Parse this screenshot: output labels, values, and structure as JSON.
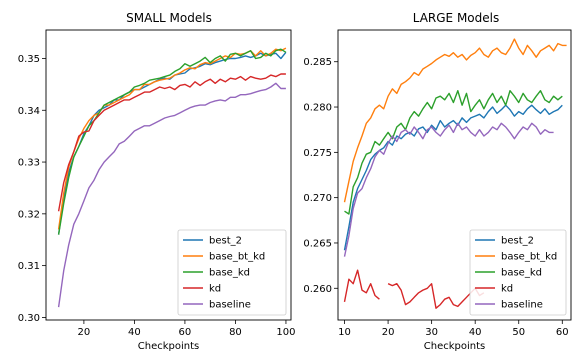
{
  "chart_data": [
    {
      "type": "line",
      "title": "SMALL Models",
      "xlabel": "Checkpoints",
      "ylabel": "",
      "xlim": [
        5,
        102
      ],
      "ylim": [
        0.2995,
        0.3555
      ],
      "xticks": [
        "20",
        "40",
        "60",
        "80",
        "100"
      ],
      "xtick_values": [
        20,
        40,
        60,
        80,
        100
      ],
      "yticks": [
        "0.30",
        "0.31",
        "0.32",
        "0.33",
        "0.34",
        "0.35"
      ],
      "ytick_values": [
        0.3,
        0.31,
        0.32,
        0.33,
        0.34,
        0.35
      ],
      "legend": "lower-right",
      "grid": false,
      "series": [
        {
          "name": "best_2",
          "color": "#1f77b4",
          "x": [
            10,
            12,
            14,
            16,
            18,
            20,
            22,
            24,
            26,
            28,
            30,
            32,
            34,
            36,
            38,
            40,
            42,
            44,
            46,
            48,
            50,
            52,
            54,
            56,
            58,
            60,
            62,
            64,
            66,
            68,
            70,
            72,
            74,
            76,
            78,
            80,
            82,
            84,
            86,
            88,
            90,
            92,
            94,
            96,
            98,
            100
          ],
          "y": [
            0.316,
            0.323,
            0.328,
            0.331,
            0.333,
            0.3355,
            0.337,
            0.339,
            0.34,
            0.3405,
            0.341,
            0.342,
            0.342,
            0.343,
            0.3435,
            0.344,
            0.344,
            0.3445,
            0.345,
            0.3455,
            0.346,
            0.3462,
            0.346,
            0.3468,
            0.347,
            0.3472,
            0.348,
            0.3482,
            0.3485,
            0.349,
            0.3488,
            0.3492,
            0.3495,
            0.3498,
            0.35,
            0.35,
            0.3502,
            0.3505,
            0.3502,
            0.3505,
            0.351,
            0.3505,
            0.3508,
            0.351,
            0.35,
            0.3512
          ]
        },
        {
          "name": "base_bt_kd",
          "color": "#ff7f0e",
          "x": [
            10,
            12,
            14,
            16,
            18,
            20,
            22,
            24,
            26,
            28,
            30,
            32,
            34,
            36,
            38,
            40,
            42,
            44,
            46,
            48,
            50,
            52,
            54,
            56,
            58,
            60,
            62,
            64,
            66,
            68,
            70,
            72,
            74,
            76,
            78,
            80,
            82,
            84,
            86,
            88,
            90,
            92,
            94,
            96,
            98,
            100
          ],
          "y": [
            0.317,
            0.324,
            0.329,
            0.332,
            0.3345,
            0.3365,
            0.338,
            0.339,
            0.3395,
            0.341,
            0.341,
            0.3415,
            0.342,
            0.3425,
            0.343,
            0.344,
            0.344,
            0.345,
            0.345,
            0.3455,
            0.3458,
            0.346,
            0.3462,
            0.3468,
            0.3472,
            0.3478,
            0.3482,
            0.348,
            0.3488,
            0.3492,
            0.349,
            0.3495,
            0.35,
            0.3505,
            0.3502,
            0.351,
            0.3508,
            0.351,
            0.3515,
            0.3505,
            0.3515,
            0.3505,
            0.351,
            0.3518,
            0.3515,
            0.352
          ]
        },
        {
          "name": "base_kd",
          "color": "#2ca02c",
          "x": [
            10,
            12,
            14,
            16,
            18,
            20,
            22,
            24,
            26,
            28,
            30,
            32,
            34,
            36,
            38,
            40,
            42,
            44,
            46,
            48,
            50,
            52,
            54,
            56,
            58,
            60,
            62,
            64,
            66,
            68,
            70,
            72,
            74,
            76,
            78,
            80,
            82,
            84,
            86,
            88,
            90,
            92,
            94,
            96,
            98,
            100
          ],
          "y": [
            0.316,
            0.322,
            0.327,
            0.331,
            0.333,
            0.335,
            0.337,
            0.338,
            0.3395,
            0.341,
            0.3415,
            0.342,
            0.3425,
            0.343,
            0.3435,
            0.3445,
            0.3448,
            0.3452,
            0.3458,
            0.346,
            0.3462,
            0.3465,
            0.3468,
            0.3475,
            0.348,
            0.349,
            0.3485,
            0.349,
            0.3495,
            0.3502,
            0.3492,
            0.35,
            0.3505,
            0.3495,
            0.3508,
            0.351,
            0.3505,
            0.351,
            0.3515,
            0.35,
            0.3502,
            0.351,
            0.3505,
            0.3515,
            0.3518,
            0.3512
          ]
        },
        {
          "name": "kd",
          "color": "#d62728",
          "x": [
            10,
            12,
            14,
            16,
            18,
            20,
            22,
            24,
            26,
            28,
            30,
            32,
            34,
            36,
            38,
            40,
            42,
            44,
            46,
            48,
            50,
            52,
            54,
            56,
            58,
            60,
            62,
            64,
            66,
            68,
            70,
            72,
            74,
            76,
            78,
            80,
            82,
            84,
            86,
            88,
            90,
            92,
            94,
            96,
            98,
            100
          ],
          "y": [
            0.3205,
            0.326,
            0.3295,
            0.332,
            0.335,
            0.3358,
            0.336,
            0.338,
            0.339,
            0.34,
            0.3405,
            0.341,
            0.3415,
            0.342,
            0.342,
            0.3425,
            0.343,
            0.3435,
            0.3435,
            0.344,
            0.3445,
            0.3442,
            0.3445,
            0.344,
            0.3448,
            0.345,
            0.3445,
            0.3455,
            0.3448,
            0.3455,
            0.346,
            0.3452,
            0.346,
            0.3455,
            0.3462,
            0.346,
            0.3465,
            0.3458,
            0.3465,
            0.3462,
            0.346,
            0.3462,
            0.3468,
            0.3465,
            0.347,
            0.347
          ]
        },
        {
          "name": "baseline",
          "color": "#9467bd",
          "x": [
            10,
            12,
            14,
            16,
            18,
            20,
            22,
            24,
            26,
            28,
            30,
            32,
            34,
            36,
            38,
            40,
            42,
            44,
            46,
            48,
            50,
            52,
            54,
            56,
            58,
            60,
            62,
            64,
            66,
            68,
            70,
            72,
            74,
            76,
            78,
            80,
            82,
            84,
            86,
            88,
            90,
            92,
            94,
            96,
            98,
            100
          ],
          "y": [
            0.302,
            0.309,
            0.314,
            0.318,
            0.32,
            0.3225,
            0.325,
            0.3265,
            0.3285,
            0.33,
            0.331,
            0.332,
            0.3335,
            0.334,
            0.335,
            0.336,
            0.3365,
            0.337,
            0.337,
            0.3375,
            0.338,
            0.3385,
            0.3388,
            0.339,
            0.3395,
            0.34,
            0.3405,
            0.3408,
            0.341,
            0.341,
            0.3415,
            0.3418,
            0.342,
            0.3418,
            0.3425,
            0.3425,
            0.343,
            0.343,
            0.3432,
            0.3435,
            0.3438,
            0.344,
            0.3445,
            0.3452,
            0.3442,
            0.3442
          ]
        }
      ]
    },
    {
      "type": "line",
      "title": "LARGE Models",
      "xlabel": "Checkpoints",
      "ylabel": "",
      "xlim": [
        8.5,
        62
      ],
      "ylim": [
        0.2565,
        0.2885
      ],
      "xticks": [
        "10",
        "20",
        "30",
        "40",
        "50",
        "60"
      ],
      "xtick_values": [
        10,
        20,
        30,
        40,
        50,
        60
      ],
      "yticks": [
        "0.260",
        "0.265",
        "0.270",
        "0.275",
        "0.280",
        "0.285"
      ],
      "ytick_values": [
        0.26,
        0.265,
        0.27,
        0.275,
        0.28,
        0.285
      ],
      "legend": "lower-right",
      "grid": false,
      "series": [
        {
          "name": "best_2",
          "color": "#1f77b4",
          "x": [
            10,
            11,
            12,
            13,
            14,
            15,
            16,
            17,
            18,
            19,
            20,
            21,
            22,
            23,
            24,
            25,
            26,
            27,
            28,
            29,
            30,
            31,
            32,
            33,
            34,
            35,
            36,
            37,
            38,
            39,
            40,
            41,
            42,
            43,
            44,
            45,
            46,
            47,
            48,
            49,
            50,
            51,
            52,
            53,
            54,
            55,
            56,
            57,
            58,
            59,
            60
          ],
          "y": [
            0.2642,
            0.2668,
            0.2695,
            0.271,
            0.272,
            0.273,
            0.2742,
            0.2748,
            0.2752,
            0.2755,
            0.2762,
            0.2758,
            0.2768,
            0.2765,
            0.277,
            0.2772,
            0.2768,
            0.2776,
            0.2778,
            0.2772,
            0.278,
            0.2775,
            0.2785,
            0.2778,
            0.2782,
            0.2785,
            0.278,
            0.2788,
            0.2783,
            0.2788,
            0.279,
            0.2792,
            0.2788,
            0.2795,
            0.28,
            0.2793,
            0.2797,
            0.2802,
            0.2797,
            0.279,
            0.2795,
            0.2792,
            0.2798,
            0.2802,
            0.2797,
            0.2793,
            0.2798,
            0.2792,
            0.2795,
            0.2797,
            0.2802
          ]
        },
        {
          "name": "base_bt_kd",
          "color": "#ff7f0e",
          "x": [
            10,
            11,
            12,
            13,
            14,
            15,
            16,
            17,
            18,
            19,
            20,
            21,
            22,
            23,
            24,
            25,
            26,
            27,
            28,
            29,
            30,
            31,
            32,
            33,
            34,
            35,
            36,
            37,
            38,
            39,
            40,
            41,
            42,
            43,
            44,
            45,
            46,
            47,
            48,
            49,
            50,
            51,
            52,
            53,
            54,
            55,
            56,
            57,
            58,
            59,
            60,
            61
          ],
          "y": [
            0.2695,
            0.2718,
            0.274,
            0.2755,
            0.2768,
            0.2782,
            0.2788,
            0.2798,
            0.2802,
            0.2798,
            0.2812,
            0.282,
            0.2815,
            0.2825,
            0.2828,
            0.2832,
            0.2838,
            0.2835,
            0.2842,
            0.2845,
            0.2848,
            0.2852,
            0.2855,
            0.2858,
            0.2856,
            0.286,
            0.2855,
            0.2858,
            0.2852,
            0.2857,
            0.286,
            0.2865,
            0.2858,
            0.2855,
            0.2862,
            0.2865,
            0.286,
            0.2858,
            0.2865,
            0.2875,
            0.2865,
            0.2858,
            0.2868,
            0.2862,
            0.2855,
            0.2862,
            0.2865,
            0.2868,
            0.2862,
            0.287,
            0.2868,
            0.2868
          ]
        },
        {
          "name": "base_kd",
          "color": "#2ca02c",
          "x": [
            10,
            11,
            12,
            13,
            14,
            15,
            16,
            17,
            18,
            19,
            20,
            21,
            22,
            23,
            24,
            25,
            26,
            27,
            28,
            29,
            30,
            31,
            32,
            33,
            34,
            35,
            36,
            37,
            38,
            39,
            40,
            41,
            42,
            43,
            44,
            45,
            46,
            47,
            48,
            49,
            50,
            51,
            52,
            53,
            54,
            55,
            56,
            57,
            58,
            59,
            60
          ],
          "y": [
            0.2685,
            0.2682,
            0.2712,
            0.2722,
            0.2738,
            0.2748,
            0.275,
            0.2762,
            0.2758,
            0.2765,
            0.2772,
            0.2765,
            0.2778,
            0.2782,
            0.2775,
            0.2788,
            0.2795,
            0.279,
            0.2798,
            0.2805,
            0.2798,
            0.281,
            0.2812,
            0.2808,
            0.2815,
            0.2805,
            0.2818,
            0.2802,
            0.2815,
            0.2795,
            0.2802,
            0.2808,
            0.2798,
            0.2808,
            0.2815,
            0.2805,
            0.2812,
            0.2802,
            0.2818,
            0.2812,
            0.2805,
            0.2815,
            0.2808,
            0.2805,
            0.2812,
            0.2818,
            0.2808,
            0.2805,
            0.2812,
            0.2808,
            0.2812
          ]
        },
        {
          "name": "kd",
          "color": "#d62728",
          "segments": [
            {
              "x": [
                10,
                11,
                12,
                13,
                14,
                15,
                16,
                17,
                18
              ],
              "y": [
                0.2585,
                0.261,
                0.2605,
                0.262,
                0.2598,
                0.2595,
                0.2605,
                0.2592,
                0.2588
              ]
            },
            {
              "x": [
                20,
                21,
                22,
                23,
                24,
                25,
                26,
                27,
                28,
                29,
                30,
                31,
                32,
                33,
                34,
                35,
                36,
                37,
                38,
                39,
                40,
                41,
                42
              ],
              "y": [
                0.2605,
                0.2603,
                0.2605,
                0.2598,
                0.2582,
                0.2585,
                0.259,
                0.2595,
                0.2598,
                0.26,
                0.2605,
                0.2578,
                0.2582,
                0.2588,
                0.259,
                0.2582,
                0.258,
                0.2585,
                0.259,
                0.2595,
                0.26,
                0.2592,
                0.2595
              ]
            }
          ]
        },
        {
          "name": "baseline",
          "color": "#9467bd",
          "x": [
            10,
            11,
            12,
            13,
            14,
            15,
            16,
            17,
            18,
            19,
            20,
            21,
            22,
            23,
            24,
            25,
            26,
            27,
            28,
            29,
            30,
            31,
            32,
            33,
            34,
            35,
            36,
            37,
            38,
            39,
            40,
            41,
            42,
            43,
            44,
            45,
            46,
            47,
            48,
            49,
            50,
            51,
            52,
            53,
            54,
            55,
            56,
            57,
            58
          ],
          "y": [
            0.2635,
            0.2658,
            0.2688,
            0.2705,
            0.271,
            0.2722,
            0.2732,
            0.2745,
            0.2752,
            0.2748,
            0.276,
            0.2768,
            0.2762,
            0.2772,
            0.2775,
            0.277,
            0.2778,
            0.2772,
            0.2765,
            0.2775,
            0.2778,
            0.2772,
            0.2768,
            0.2775,
            0.278,
            0.2772,
            0.2782,
            0.2775,
            0.2778,
            0.2772,
            0.2768,
            0.2775,
            0.2768,
            0.2772,
            0.2778,
            0.2775,
            0.2782,
            0.2778,
            0.2772,
            0.2765,
            0.2772,
            0.2778,
            0.2775,
            0.2782,
            0.2778,
            0.277,
            0.2775,
            0.2772,
            0.2772
          ]
        }
      ]
    }
  ]
}
